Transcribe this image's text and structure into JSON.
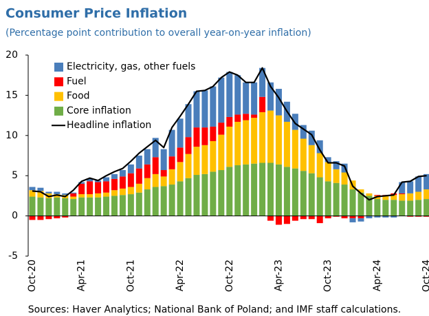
{
  "chart_data": {
    "type": "bar",
    "stacked": true,
    "title": "Consumer Price Inflation",
    "subtitle": "(Percentage point contribution to overall year-on-year inflation)",
    "source": "Sources: Haver Analytics; National Bank of Poland; and IMF staff calculations.",
    "categories": [
      "Oct-20",
      null,
      null,
      null,
      null,
      null,
      "Apr-21",
      null,
      null,
      null,
      null,
      null,
      "Oct-21",
      null,
      null,
      null,
      null,
      null,
      "Apr-22",
      null,
      null,
      null,
      null,
      null,
      "Oct-22",
      null,
      null,
      null,
      null,
      null,
      "Apr-23",
      null,
      null,
      null,
      null,
      null,
      "Oct-23",
      null,
      null,
      null,
      null,
      null,
      "Apr-24",
      null,
      null,
      null,
      null,
      null,
      "Oct-24"
    ],
    "ylim": [
      -5,
      20
    ],
    "yticks": [
      -5,
      0,
      5,
      10,
      15,
      20
    ],
    "grid": false,
    "legend": "upper left",
    "series": [
      {
        "name": "Electricity, gas, other fuels",
        "color": "#4a7ebb",
        "values": [
          0.4,
          0.4,
          0.2,
          0.3,
          0.2,
          0.1,
          0.2,
          0.3,
          0.2,
          0.5,
          0.6,
          0.8,
          1.1,
          1.6,
          1.9,
          2.4,
          2.6,
          3.3,
          3.6,
          4.1,
          4.5,
          4.6,
          5.0,
          5.6,
          5.6,
          4.9,
          3.9,
          4.0,
          3.6,
          3.5,
          3.3,
          2.5,
          2.0,
          1.7,
          1.8,
          1.6,
          0.6,
          1.0,
          1.1,
          -0.5,
          -0.4,
          -0.3,
          -0.2,
          -0.2,
          -0.2,
          1.4,
          1.5,
          1.9,
          1.9
        ]
      },
      {
        "name": "Fuel",
        "color": "#ff0000",
        "values": [
          -0.5,
          -0.5,
          -0.4,
          -0.3,
          -0.2,
          0.4,
          1.3,
          1.6,
          1.4,
          1.4,
          1.4,
          1.5,
          1.7,
          1.9,
          1.7,
          2.1,
          0.8,
          1.6,
          1.8,
          2.1,
          2.4,
          2.2,
          1.8,
          1.5,
          1.2,
          0.9,
          0.8,
          0.4,
          1.9,
          -0.6,
          -1.1,
          -1.0,
          -0.6,
          -0.4,
          -0.4,
          -0.9,
          -0.3,
          -0.1,
          -0.3,
          -0.3,
          -0.3,
          0.0,
          0.1,
          0.1,
          0.2,
          0.1,
          -0.1,
          -0.1,
          -0.1
        ]
      },
      {
        "name": "Food",
        "color": "#ffc000",
        "values": [
          0.8,
          0.8,
          0.6,
          0.4,
          0.4,
          0.3,
          0.4,
          0.4,
          0.5,
          0.5,
          0.7,
          0.8,
          0.9,
          1.1,
          1.4,
          1.6,
          1.2,
          1.9,
          2.4,
          3.0,
          3.5,
          3.6,
          3.8,
          4.4,
          5.0,
          5.4,
          5.5,
          5.7,
          6.3,
          6.5,
          6.1,
          5.6,
          4.8,
          4.0,
          3.5,
          3.0,
          2.4,
          1.7,
          1.5,
          1.1,
          0.4,
          0.3,
          0.4,
          0.5,
          0.6,
          0.8,
          0.9,
          1.0,
          1.2
        ]
      },
      {
        "name": "Core inflation",
        "color": "#70ad47",
        "values": [
          2.4,
          2.3,
          2.2,
          2.3,
          2.2,
          2.1,
          2.3,
          2.3,
          2.3,
          2.4,
          2.5,
          2.6,
          2.7,
          2.9,
          3.3,
          3.6,
          3.7,
          3.9,
          4.3,
          4.7,
          5.1,
          5.2,
          5.5,
          5.7,
          6.1,
          6.3,
          6.4,
          6.5,
          6.6,
          6.6,
          6.4,
          6.1,
          5.9,
          5.6,
          5.3,
          4.8,
          4.3,
          4.1,
          3.9,
          3.3,
          2.9,
          2.5,
          2.1,
          2.0,
          2.0,
          1.9,
          1.9,
          2.0,
          2.1
        ]
      },
      {
        "name": "Headline inflation",
        "color": "#000000",
        "type": "line",
        "values": [
          3.1,
          3.0,
          2.4,
          2.6,
          2.4,
          3.2,
          4.3,
          4.7,
          4.4,
          5.0,
          5.5,
          5.9,
          6.8,
          7.8,
          8.6,
          9.4,
          8.5,
          11.0,
          12.4,
          13.9,
          15.5,
          15.6,
          16.1,
          17.2,
          17.9,
          17.5,
          16.6,
          16.6,
          18.4,
          16.1,
          14.7,
          13.0,
          11.5,
          10.8,
          10.1,
          8.2,
          6.6,
          6.6,
          6.2,
          3.7,
          2.8,
          2.0,
          2.4,
          2.5,
          2.6,
          4.2,
          4.3,
          4.9,
          5.0
        ]
      }
    ]
  }
}
